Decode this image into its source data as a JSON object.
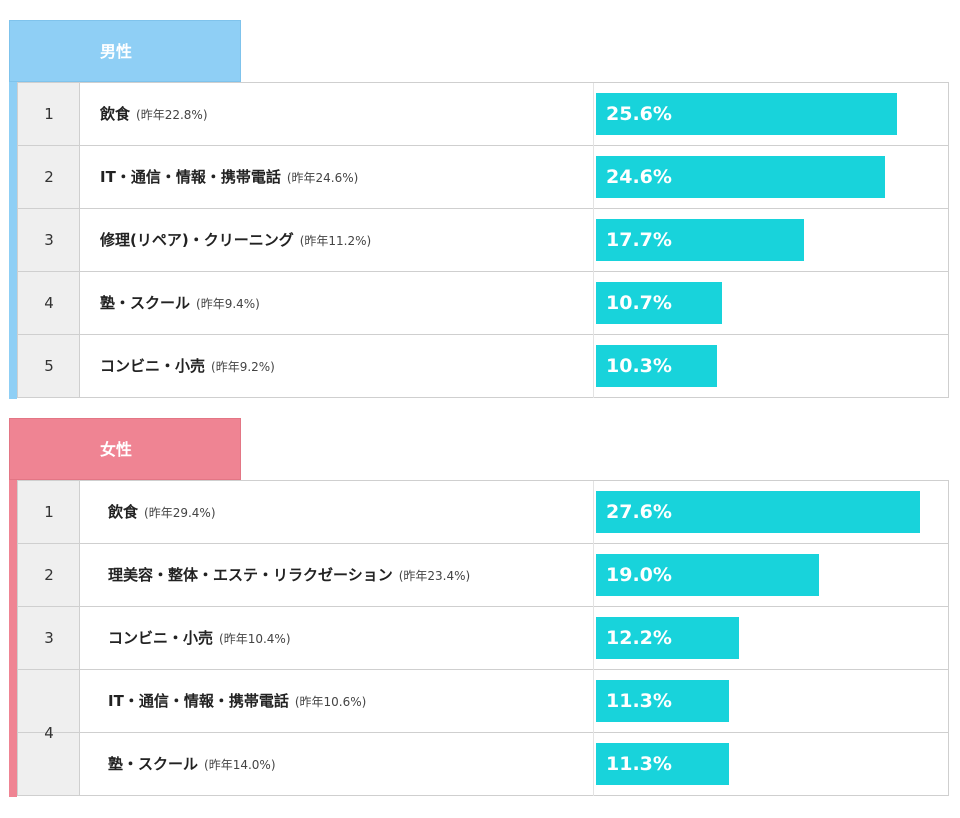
{
  "colors": {
    "male": "#8fcff5",
    "female": "#ef8493",
    "bar": "#18d3db"
  },
  "chart_data": [
    {
      "type": "bar",
      "title": "男性",
      "categories": [
        "飲食",
        "IT・通信・情報・携帯電話",
        "修理(リペア)・クリーニング",
        "塾・スクール",
        "コンビニ・小売"
      ],
      "ranks": [
        "1",
        "2",
        "3",
        "4",
        "5"
      ],
      "previous": [
        "(昨年22.8%)",
        "(昨年24.6%)",
        "(昨年11.2%)",
        "(昨年9.4%)",
        "(昨年9.2%)"
      ],
      "value_labels": [
        "25.6%",
        "24.6%",
        "17.7%",
        "10.7%",
        "10.3%"
      ],
      "values": [
        25.6,
        24.6,
        17.7,
        10.7,
        10.3
      ],
      "previous_values": [
        22.8,
        24.6,
        11.2,
        9.4,
        9.2
      ]
    },
    {
      "type": "bar",
      "title": "女性",
      "categories": [
        "飲食",
        "理美容・整体・エステ・リラクゼーション",
        "コンビニ・小売",
        "IT・通信・情報・携帯電話",
        "塾・スクール"
      ],
      "ranks": [
        "1",
        "2",
        "3",
        "4",
        "4"
      ],
      "previous": [
        "(昨年29.4%)",
        "(昨年23.4%)",
        "(昨年10.4%)",
        "(昨年10.6%)",
        "(昨年14.0%)"
      ],
      "value_labels": [
        "27.6%",
        "19.0%",
        "12.2%",
        "11.3%",
        "11.3%"
      ],
      "values": [
        27.6,
        19.0,
        12.2,
        11.3,
        11.3
      ],
      "previous_values": [
        29.4,
        23.4,
        10.4,
        10.6,
        14.0
      ]
    }
  ]
}
